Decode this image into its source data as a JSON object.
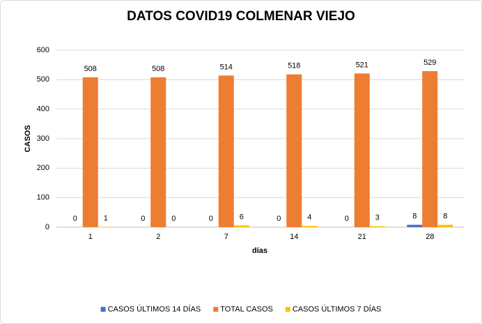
{
  "chart_data": {
    "type": "bar",
    "title": "DATOS COVID19 COLMENAR VIEJO",
    "x_label": "días",
    "y_label": "CASOS",
    "categories": [
      "1",
      "2",
      "7",
      "14",
      "21",
      "28"
    ],
    "series": [
      {
        "name": "CASOS ÚLTIMOS 14 DÍAS",
        "color": "#4472c4",
        "values": [
          0,
          0,
          0,
          0,
          0,
          8
        ]
      },
      {
        "name": "TOTAL CASOS",
        "color": "#ed7d31",
        "values": [
          508,
          508,
          514,
          518,
          521,
          529
        ]
      },
      {
        "name": "CASOS ÚLTIMOS 7 DÍAS",
        "color": "#ffc000",
        "values": [
          1,
          0,
          6,
          4,
          3,
          8
        ]
      }
    ],
    "ylim": [
      0,
      600
    ],
    "yticks": [
      0,
      100,
      200,
      300,
      400,
      500,
      600
    ],
    "grid": true,
    "legend": "bottom"
  }
}
